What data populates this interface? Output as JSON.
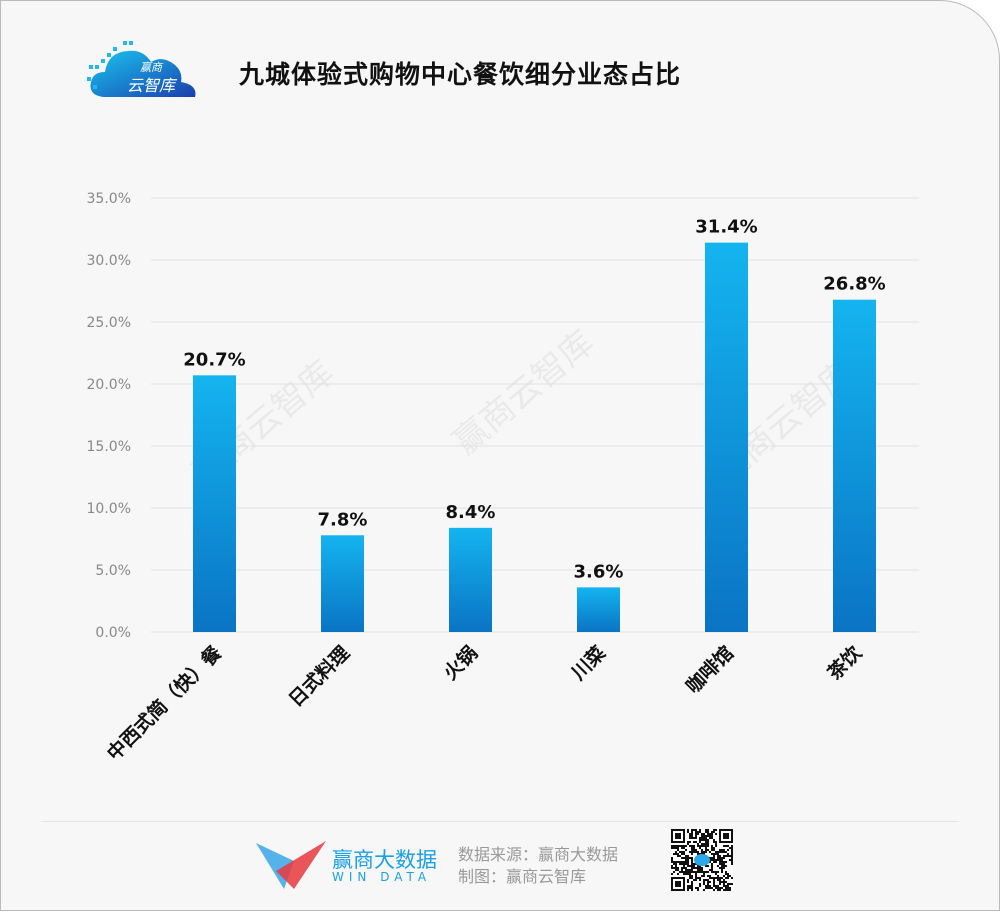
{
  "header": {
    "title": "九城体验式购物中心餐饮细分业态占比",
    "logo_text": "赢商云智库",
    "logo_top": "赢商",
    "logo_bottom": "云智库"
  },
  "watermark": "赢商云智库",
  "colors": {
    "bar_top": "#14b4ef",
    "bar_bottom": "#0a74c4",
    "grid": "#e0e0e0",
    "axis_text": "#888888"
  },
  "chart_data": {
    "type": "bar",
    "title": "九城体验式购物中心餐饮细分业态占比",
    "categories": [
      "中西式简（快）餐",
      "日式料理",
      "火锅",
      "川菜",
      "咖啡馆",
      "茶饮"
    ],
    "values": [
      20.7,
      7.8,
      8.4,
      3.6,
      31.4,
      26.8
    ],
    "data_labels": [
      "20.7%",
      "7.8%",
      "8.4%",
      "3.6%",
      "31.4%",
      "26.8%"
    ],
    "ylim": [
      0,
      35
    ],
    "yticks": [
      "0.0%",
      "5.0%",
      "10.0%",
      "15.0%",
      "20.0%",
      "25.0%",
      "30.0%",
      "35.0%"
    ],
    "grid": true
  },
  "footer": {
    "brand_cn": "赢商大数据",
    "brand_en": "WIN DATA",
    "source": "数据来源：赢商大数据",
    "made_by": "制图：赢商云智库"
  }
}
